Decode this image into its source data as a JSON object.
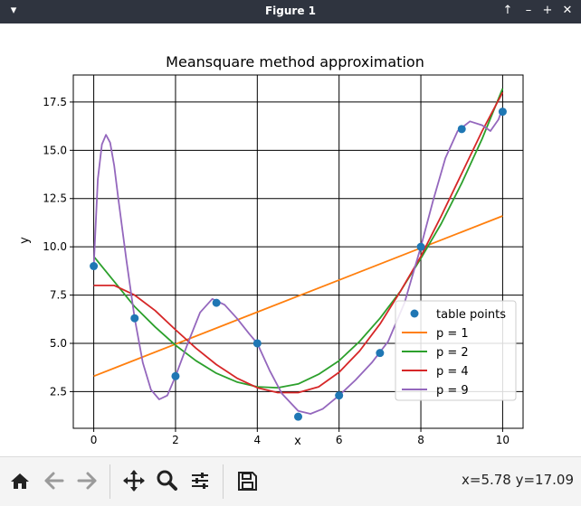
{
  "window": {
    "title": "Figure 1"
  },
  "toolbar": {
    "coords": "x=5.78 y=17.09"
  },
  "chart_data": {
    "type": "line",
    "title": "Meansquare method approximation",
    "xlabel": "x",
    "ylabel": "y",
    "xlim": [
      -0.5,
      10.5
    ],
    "ylim": [
      0.6,
      18.9
    ],
    "xticks": [
      0,
      2,
      4,
      6,
      8,
      10
    ],
    "yticks": [
      2.5,
      5.0,
      7.5,
      10.0,
      12.5,
      15.0,
      17.5
    ],
    "xtick_labels": [
      "0",
      "2",
      "4",
      "6",
      "8",
      "10"
    ],
    "ytick_labels": [
      "2.5",
      "5.0",
      "7.5",
      "10.0",
      "12.5",
      "15.0",
      "17.5"
    ],
    "grid": true,
    "legend_position": "lower-right",
    "points": {
      "name": "table points",
      "color": "#1f77b4",
      "x": [
        0,
        1,
        2,
        3,
        4,
        5,
        6,
        7,
        8,
        9,
        10
      ],
      "y": [
        9.0,
        6.3,
        3.3,
        7.1,
        5.0,
        1.2,
        2.3,
        4.5,
        10.0,
        16.1,
        17.0
      ]
    },
    "series": [
      {
        "name": "p = 1",
        "color": "#ff7f0e",
        "x": [
          0,
          10
        ],
        "y": [
          3.3,
          11.6
        ]
      },
      {
        "name": "p = 2",
        "color": "#2ca02c",
        "x": [
          0,
          0.5,
          1,
          1.5,
          2,
          2.5,
          3,
          3.5,
          4,
          4.5,
          5,
          5.5,
          6,
          6.5,
          7,
          7.5,
          8,
          8.5,
          9,
          9.5,
          10
        ],
        "y": [
          9.5,
          8.2,
          6.9,
          5.85,
          4.9,
          4.1,
          3.45,
          3.0,
          2.75,
          2.7,
          2.9,
          3.4,
          4.1,
          5.1,
          6.3,
          7.7,
          9.4,
          11.2,
          13.3,
          15.6,
          18.2
        ]
      },
      {
        "name": "p = 4",
        "color": "#d62728",
        "x": [
          0,
          0.5,
          1,
          1.5,
          2,
          2.5,
          3,
          3.5,
          4,
          4.5,
          5,
          5.5,
          6,
          6.5,
          7,
          7.5,
          8,
          8.5,
          9,
          9.5,
          10
        ],
        "y": [
          8.0,
          8.0,
          7.5,
          6.7,
          5.7,
          4.75,
          3.9,
          3.2,
          2.7,
          2.45,
          2.45,
          2.75,
          3.5,
          4.6,
          6.0,
          7.7,
          9.5,
          11.6,
          13.8,
          16.0,
          18.0
        ]
      },
      {
        "name": "p = 9",
        "color": "#9467bd",
        "x": [
          0,
          0.1,
          0.2,
          0.3,
          0.4,
          0.5,
          0.6,
          0.8,
          1.0,
          1.2,
          1.4,
          1.6,
          1.8,
          2.0,
          2.3,
          2.6,
          2.9,
          3.2,
          3.5,
          3.8,
          4.0,
          4.3,
          4.6,
          5.0,
          5.3,
          5.6,
          6.0,
          6.4,
          6.8,
          7.2,
          7.6,
          8.0,
          8.3,
          8.6,
          8.9,
          9.2,
          9.5,
          9.7,
          9.9,
          10.0
        ],
        "y": [
          9.0,
          13.5,
          15.3,
          15.8,
          15.4,
          14.2,
          12.5,
          9.3,
          6.3,
          4.0,
          2.6,
          2.1,
          2.3,
          3.3,
          5.0,
          6.6,
          7.3,
          7.0,
          6.3,
          5.5,
          5.0,
          3.6,
          2.4,
          1.5,
          1.35,
          1.6,
          2.3,
          3.1,
          4.0,
          5.1,
          7.1,
          10.0,
          12.4,
          14.6,
          16.0,
          16.5,
          16.3,
          16.0,
          16.6,
          17.2
        ]
      }
    ]
  }
}
